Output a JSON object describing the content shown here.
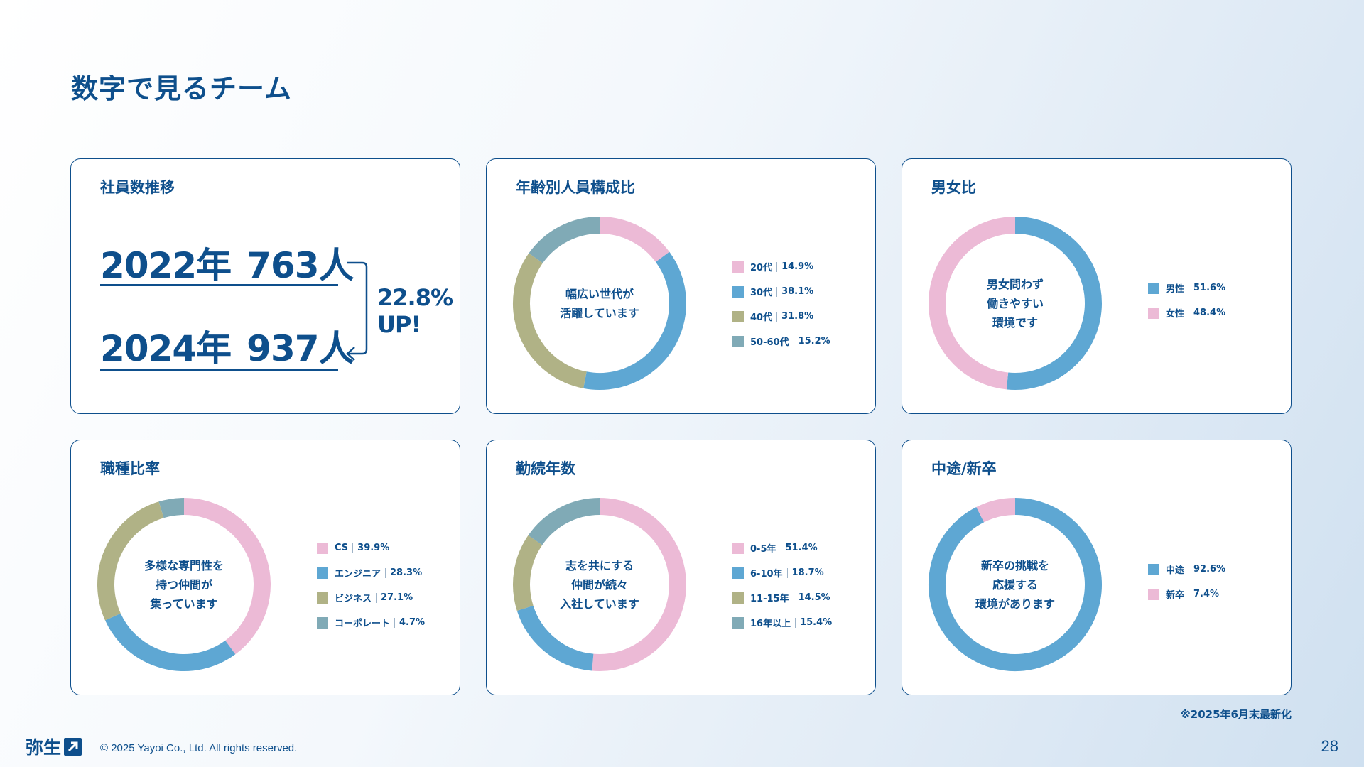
{
  "page": {
    "title": "数字で見るチーム",
    "note": "※2025年6月末最新化",
    "logo_text": "弥生",
    "copyright": "© 2025 Yayoi Co., Ltd. All rights reserved.",
    "page_number": "28"
  },
  "headcount": {
    "title": "社員数推移",
    "rows": [
      {
        "year": "2022年",
        "count": "763人"
      },
      {
        "year": "2024年",
        "count": "937人"
      }
    ],
    "growth_pct": "22.8%",
    "growth_label": "UP!"
  },
  "colors": {
    "pink": "#ecbad6",
    "blue": "#5ea7d3",
    "olive": "#b0b286",
    "teal": "#80aab6",
    "text": "#0e4f8c"
  },
  "chart_data": [
    {
      "id": "age",
      "type": "pie",
      "title": "年齢別人員構成比",
      "center_lines": [
        "幅広い世代が",
        "活躍しています"
      ],
      "slices": [
        {
          "label": "20代",
          "value": 14.9,
          "display": "14.9%",
          "color": "#ecbad6"
        },
        {
          "label": "30代",
          "value": 38.1,
          "display": "38.1%",
          "color": "#5ea7d3"
        },
        {
          "label": "40代",
          "value": 31.8,
          "display": "31.8%",
          "color": "#b0b286"
        },
        {
          "label": "50-60代",
          "value": 15.2,
          "display": "15.2%",
          "color": "#80aab6"
        }
      ]
    },
    {
      "id": "gender",
      "type": "pie",
      "title": "男女比",
      "center_lines": [
        "男女問わず",
        "働きやすい",
        "環境です"
      ],
      "slices": [
        {
          "label": "男性",
          "value": 51.6,
          "display": "51.6%",
          "color": "#5ea7d3"
        },
        {
          "label": "女性",
          "value": 48.4,
          "display": "48.4%",
          "color": "#ecbad6"
        }
      ]
    },
    {
      "id": "job",
      "type": "pie",
      "title": "職種比率",
      "center_lines": [
        "多様な専門性を",
        "持つ仲間が",
        "集っています"
      ],
      "slices": [
        {
          "label": "CS",
          "value": 39.9,
          "display": "39.9%",
          "color": "#ecbad6"
        },
        {
          "label": "エンジニア",
          "value": 28.3,
          "display": "28.3%",
          "color": "#5ea7d3"
        },
        {
          "label": "ビジネス",
          "value": 27.1,
          "display": "27.1%",
          "color": "#b0b286"
        },
        {
          "label": "コーポレート",
          "value": 4.7,
          "display": "4.7%",
          "color": "#80aab6"
        }
      ]
    },
    {
      "id": "tenure",
      "type": "pie",
      "title": "勤続年数",
      "center_lines": [
        "志を共にする",
        "仲間が続々",
        "入社しています"
      ],
      "slices": [
        {
          "label": "0-5年",
          "value": 51.4,
          "display": "51.4%",
          "color": "#ecbad6"
        },
        {
          "label": "6-10年",
          "value": 18.7,
          "display": "18.7%",
          "color": "#5ea7d3"
        },
        {
          "label": "11-15年",
          "value": 14.5,
          "display": "14.5%",
          "color": "#b0b286"
        },
        {
          "label": "16年以上",
          "value": 15.4,
          "display": "15.4%",
          "color": "#80aab6"
        }
      ]
    },
    {
      "id": "hire",
      "type": "pie",
      "title": "中途/新卒",
      "center_lines": [
        "新卒の挑戦を",
        "応援する",
        "環境があります"
      ],
      "slices": [
        {
          "label": "中途",
          "value": 92.6,
          "display": "92.6%",
          "color": "#5ea7d3"
        },
        {
          "label": "新卒",
          "value": 7.4,
          "display": "7.4%",
          "color": "#ecbad6"
        }
      ]
    }
  ]
}
